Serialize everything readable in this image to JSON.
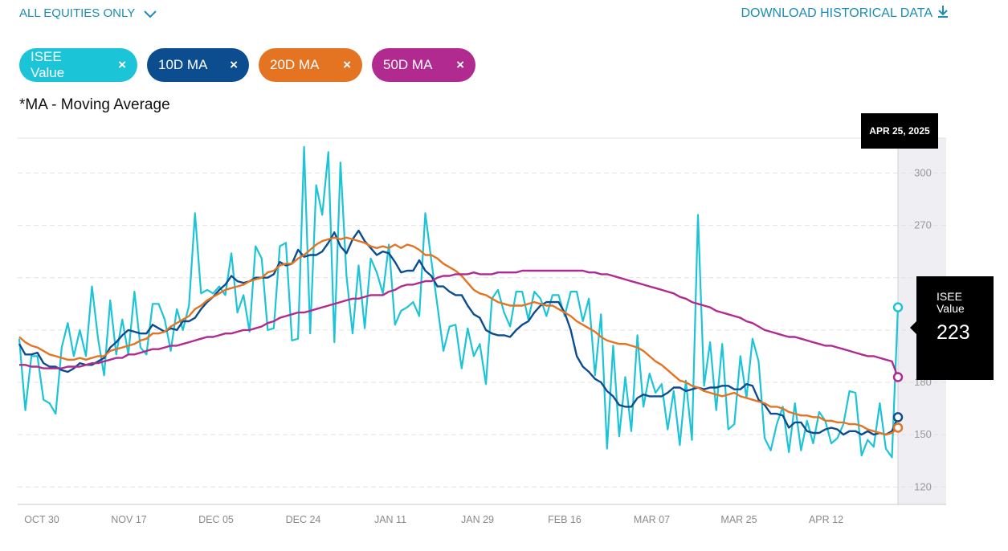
{
  "filter": {
    "label": "ALL EQUITIES ONLY",
    "icon": "chevron-down-icon"
  },
  "download": {
    "label": "DOWNLOAD HISTORICAL DATA",
    "icon": "download-icon"
  },
  "legend_chips": [
    {
      "label": "ISEE Value",
      "color": "#1cc4d7",
      "close": "×"
    },
    {
      "label": "10D MA",
      "color": "#0b4d8f",
      "close": "×"
    },
    {
      "label": "20D MA",
      "color": "#e47322",
      "close": "×"
    },
    {
      "label": "50D MA",
      "color": "#b12a8f",
      "close": "×"
    }
  ],
  "note": "*MA - Moving Average",
  "tooltip": {
    "date": "APR 25, 2025",
    "label": "ISEE Value",
    "value": "223"
  },
  "chart_data": {
    "type": "line",
    "ylim": [
      110,
      320
    ],
    "y_ticks": [
      120,
      150,
      180,
      270,
      300
    ],
    "x_tick_labels": [
      "OCT 30",
      "NOV 17",
      "DEC 05",
      "DEC 24",
      "JAN 11",
      "JAN 29",
      "FEB 16",
      "MAR 07",
      "MAR 25",
      "APR 12"
    ],
    "grid": "horizontal dashed",
    "series": [
      {
        "name": "ISEE Value",
        "color": "#1cc4d7",
        "values": [
          205,
          164,
          195,
          195,
          170,
          168,
          162,
          200,
          214,
          195,
          210,
          195,
          235,
          205,
          184,
          227,
          196,
          216,
          196,
          232,
          200,
          196,
          225,
          225,
          216,
          198,
          222,
          210,
          224,
          277,
          231,
          233,
          231,
          235,
          230,
          254,
          220,
          230,
          209,
          258,
          251,
          210,
          211,
          258,
          260,
          204,
          205,
          315,
          208,
          293,
          276,
          312,
          203,
          306,
          241,
          208,
          247,
          211,
          251,
          243,
          231,
          259,
          213,
          221,
          223,
          226,
          218,
          277,
          250,
          224,
          198,
          212,
          213,
          188,
          211,
          195,
          202,
          179,
          228,
          233,
          220,
          212,
          232,
          232,
          216,
          232,
          228,
          218,
          230,
          230,
          218,
          232,
          232,
          215,
          228,
          184,
          219,
          142,
          201,
          149,
          183,
          152,
          207,
          166,
          185,
          174,
          179,
          153,
          175,
          144,
          181,
          147,
          276,
          178,
          203,
          164,
          202,
          153,
          156,
          195,
          171,
          205,
          192,
          148,
          141,
          156,
          166,
          140,
          168,
          141,
          158,
          145,
          163,
          158,
          145,
          148,
          156,
          175,
          174,
          138,
          147,
          143,
          168,
          142,
          137,
          223
        ],
        "marker": 223
      },
      {
        "name": "10D MA",
        "color": "#0b4d8f",
        "values": [
          202,
          196,
          196,
          197,
          191,
          189,
          189,
          187,
          186,
          188,
          191,
          190,
          190,
          192,
          194,
          200,
          203,
          207,
          210,
          209,
          208,
          208,
          213,
          211,
          209,
          211,
          210,
          215,
          215,
          217,
          222,
          226,
          229,
          233,
          236,
          241,
          238,
          237,
          238,
          240,
          240,
          240,
          242,
          249,
          247,
          248,
          256,
          252,
          253,
          253,
          255,
          260,
          266,
          258,
          254,
          262,
          267,
          261,
          257,
          253,
          255,
          254,
          249,
          243,
          244,
          244,
          250,
          244,
          241,
          235,
          235,
          232,
          230,
          230,
          224,
          219,
          217,
          210,
          208,
          207,
          207,
          206,
          210,
          213,
          215,
          220,
          224,
          226,
          226,
          226,
          220,
          210,
          195,
          189,
          186,
          182,
          180,
          175,
          172,
          167,
          166,
          166,
          171,
          173,
          172,
          172,
          172,
          174,
          177,
          177,
          175,
          176,
          177,
          176,
          177,
          177,
          178,
          178,
          176,
          176,
          179,
          178,
          170,
          167,
          162,
          162,
          161,
          154,
          157,
          157,
          152,
          151,
          151,
          153,
          154,
          153,
          150,
          152,
          152,
          150,
          152,
          150,
          151,
          150,
          152,
          160
        ],
        "marker": 160
      },
      {
        "name": "20D MA",
        "color": "#e47322",
        "values": [
          206,
          203,
          201,
          200,
          198,
          196,
          195,
          194,
          193,
          193,
          194,
          193,
          194,
          195,
          195,
          198,
          199,
          200,
          201,
          202,
          204,
          205,
          208,
          208,
          209,
          212,
          214,
          216,
          218,
          222,
          224,
          227,
          229,
          231,
          233,
          234,
          235,
          236,
          238,
          239,
          240,
          243,
          244,
          247,
          248,
          248,
          251,
          253,
          256,
          259,
          261,
          262,
          263,
          262,
          263,
          262,
          261,
          260,
          258,
          257,
          258,
          257,
          259,
          257,
          259,
          258,
          256,
          253,
          253,
          251,
          248,
          246,
          244,
          241,
          237,
          233,
          231,
          230,
          228,
          226,
          225,
          224,
          224,
          224,
          225,
          226,
          225,
          224,
          224,
          222,
          220,
          218,
          215,
          213,
          211,
          209,
          206,
          204,
          203,
          202,
          202,
          201,
          200,
          198,
          195,
          192,
          190,
          187,
          184,
          181,
          180,
          178,
          177,
          175,
          174,
          173,
          172,
          173,
          174,
          172,
          171,
          170,
          169,
          168,
          166,
          166,
          165,
          163,
          162,
          161,
          161,
          160,
          160,
          158,
          158,
          157,
          157,
          156,
          156,
          155,
          153,
          152,
          151,
          150,
          151,
          154
        ],
        "marker": 154
      },
      {
        "name": "50D MA",
        "color": "#b12a8f",
        "values": [
          190,
          190,
          189,
          189,
          188,
          188,
          188,
          188,
          189,
          189,
          189,
          190,
          191,
          191,
          192,
          193,
          194,
          194,
          196,
          196,
          197,
          198,
          199,
          199,
          200,
          201,
          201,
          202,
          203,
          204,
          205,
          206,
          206,
          207,
          208,
          208,
          209,
          210,
          210,
          211,
          212,
          214,
          215,
          217,
          218,
          219,
          220,
          220,
          221,
          222,
          223,
          224,
          225,
          226,
          227,
          228,
          228,
          229,
          230,
          230,
          230,
          232,
          233,
          235,
          236,
          236,
          237,
          238,
          238,
          240,
          241,
          241,
          242,
          242,
          242,
          243,
          242,
          242,
          242,
          243,
          243,
          243,
          243,
          244,
          244,
          244,
          244,
          244,
          244,
          244,
          244,
          244,
          244,
          244,
          243,
          243,
          242,
          242,
          241,
          240,
          239,
          238,
          237,
          236,
          235,
          234,
          233,
          232,
          231,
          229,
          228,
          226,
          225,
          224,
          223,
          221,
          220,
          219,
          218,
          217,
          215,
          214,
          212,
          210,
          209,
          208,
          207,
          206,
          206,
          205,
          204,
          203,
          202,
          201,
          201,
          200,
          199,
          198,
          197,
          196,
          195,
          195,
          194,
          193,
          192,
          183
        ],
        "marker": 183
      }
    ]
  }
}
